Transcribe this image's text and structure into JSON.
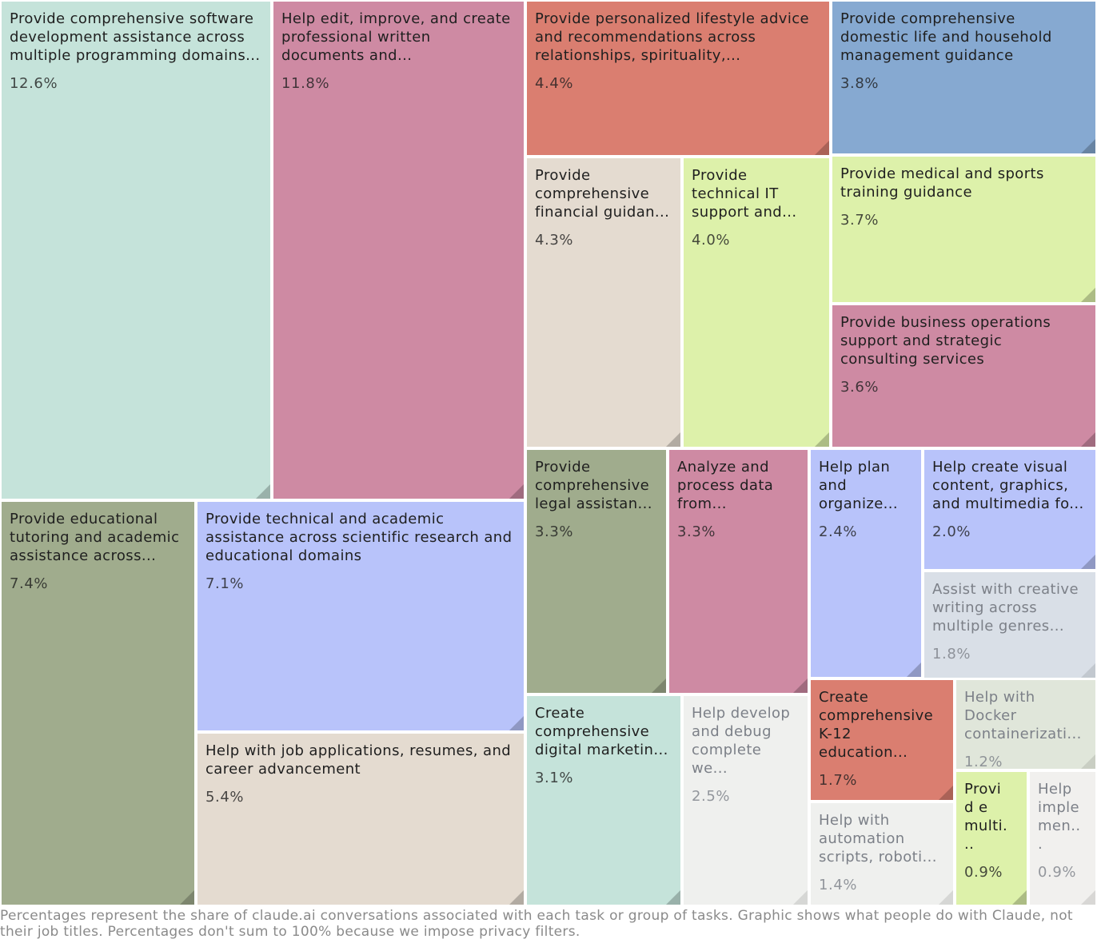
{
  "chart_data": {
    "type": "treemap",
    "title": "",
    "items": [
      {
        "label": "Provide comprehensive software development assistance across multiple programming domains...",
        "value": 12.6,
        "value_label": "12.6%",
        "color": "#c5e3da"
      },
      {
        "label": "Help edit, improve, and create professional written documents and...",
        "value": 11.8,
        "value_label": "11.8%",
        "color": "#ce8aa3"
      },
      {
        "label": "Provide personalized lifestyle advice and recommendations across relationships, spirituality,...",
        "value": 4.4,
        "value_label": "4.4%",
        "color": "#da7e70"
      },
      {
        "label": "Provide comprehensive domestic life and household management guidance",
        "value": 3.8,
        "value_label": "3.8%",
        "color": "#86a9d1"
      },
      {
        "label": "Provide comprehensive financial guidan...",
        "value": 4.3,
        "value_label": "4.3%",
        "color": "#e4dbd0"
      },
      {
        "label": "Provide technical IT support and...",
        "value": 4.0,
        "value_label": "4.0%",
        "color": "#ddf1aa"
      },
      {
        "label": "Provide medical and sports training guidance",
        "value": 3.7,
        "value_label": "3.7%",
        "color": "#ddf1aa"
      },
      {
        "label": "Provide business operations support and strategic consulting services",
        "value": 3.6,
        "value_label": "3.6%",
        "color": "#ce8aa3"
      },
      {
        "label": "Provide educational tutoring and academic assistance across...",
        "value": 7.4,
        "value_label": "7.4%",
        "color": "#a0ac8d"
      },
      {
        "label": "Provide technical and academic assistance across scientific research and educational domains",
        "value": 7.1,
        "value_label": "7.1%",
        "color": "#b8c3fa"
      },
      {
        "label": "Help with job applications, resumes, and career advancement",
        "value": 5.4,
        "value_label": "5.4%",
        "color": "#e4dbd0"
      },
      {
        "label": "Provide comprehensive legal assistan...",
        "value": 3.3,
        "value_label": "3.3%",
        "color": "#a0ac8d"
      },
      {
        "label": "Analyze and process data from...",
        "value": 3.3,
        "value_label": "3.3%",
        "color": "#ce8aa3"
      },
      {
        "label": "Help plan and organize...",
        "value": 2.4,
        "value_label": "2.4%",
        "color": "#b8c3fa"
      },
      {
        "label": "Help create visual content, graphics, and multimedia fo...",
        "value": 2.0,
        "value_label": "2.0%",
        "color": "#b8c3fa"
      },
      {
        "label": "Assist with creative writing across multiple genres...",
        "value": 1.8,
        "value_label": "1.8%",
        "color": "#d9dfe7"
      },
      {
        "label": "Create comprehensive digital marketin...",
        "value": 3.1,
        "value_label": "3.1%",
        "color": "#c5e3da"
      },
      {
        "label": "Help develop and debug complete we...",
        "value": 2.5,
        "value_label": "2.5%",
        "color": "#eff0ee"
      },
      {
        "label": "Create comprehensive K-12 education...",
        "value": 1.7,
        "value_label": "1.7%",
        "color": "#da7e70"
      },
      {
        "label": "Help with Docker containerizati...",
        "value": 1.2,
        "value_label": "1.2%",
        "color": "#e0e6da"
      },
      {
        "label": "Help with automation scripts, roboti...",
        "value": 1.4,
        "value_label": "1.4%",
        "color": "#eff0ee"
      },
      {
        "label": "Provid e multi...",
        "value": 0.9,
        "value_label": "0.9%",
        "color": "#ddf1aa"
      },
      {
        "label": "Help imple men...",
        "value": 0.9,
        "value_label": "0.9%",
        "color": "#f1f0ee"
      }
    ]
  },
  "footnote": "Percentages represent the share of claude.ai conversations associated with each task or group of tasks. Graphic shows what people do with Claude, not their job titles. Percentages don't sum to 100% because we impose privacy filters."
}
